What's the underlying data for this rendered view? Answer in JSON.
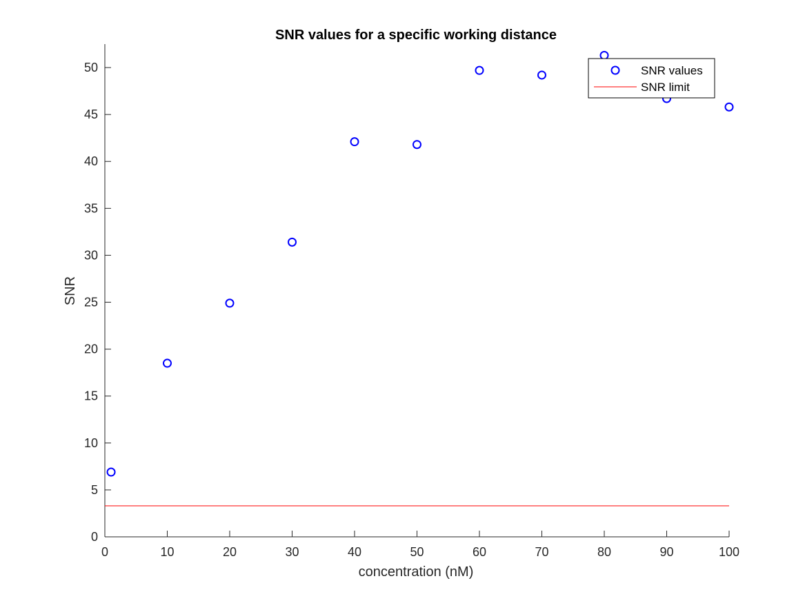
{
  "chart_data": {
    "type": "scatter",
    "title": "SNR values for a specific working distance",
    "xlabel": "concentration (nM)",
    "ylabel": "SNR",
    "xlim": [
      0,
      100
    ],
    "ylim": [
      0,
      52.5
    ],
    "xticks": [
      0,
      10,
      20,
      30,
      40,
      50,
      60,
      70,
      80,
      90,
      100
    ],
    "yticks": [
      0,
      5,
      10,
      15,
      20,
      25,
      30,
      35,
      40,
      45,
      50
    ],
    "grid": false,
    "legend_position": "top-right",
    "series": [
      {
        "name": "SNR values",
        "kind": "markers",
        "marker": "circle-open",
        "color": "#0000ff",
        "x": [
          1,
          10,
          20,
          30,
          40,
          50,
          60,
          70,
          80,
          90,
          100
        ],
        "y": [
          6.9,
          18.5,
          24.9,
          31.4,
          42.1,
          41.8,
          49.7,
          49.2,
          51.3,
          46.7,
          45.8
        ]
      },
      {
        "name": "SNR limit",
        "kind": "line",
        "color": "#ff0000",
        "x": [
          0,
          100
        ],
        "y": [
          3.3,
          3.3
        ]
      }
    ]
  }
}
